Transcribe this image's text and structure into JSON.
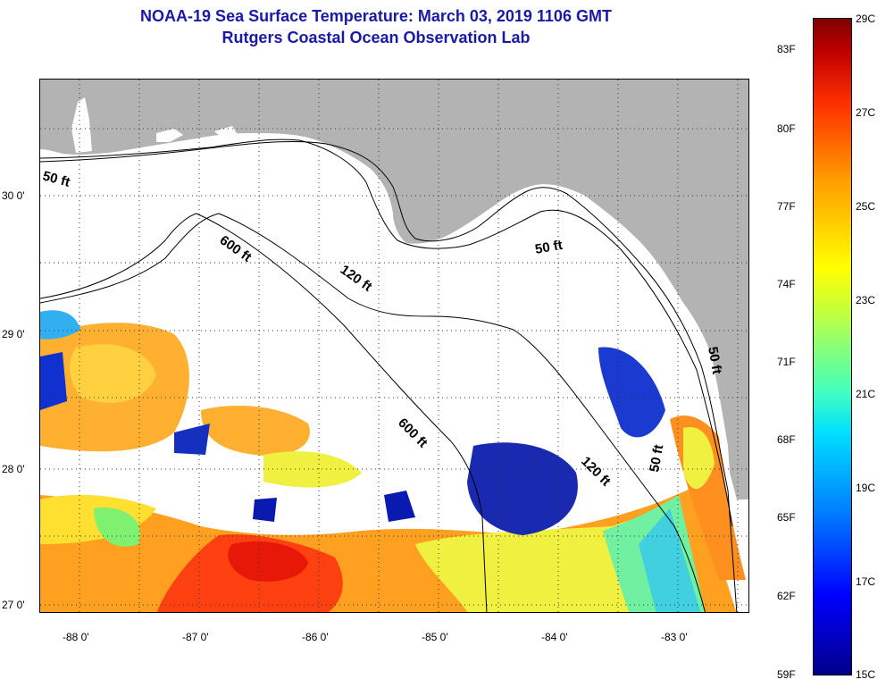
{
  "header": {
    "title": "NOAA-19 Sea Surface Temperature:  March 03, 2019 1106 GMT",
    "subtitle": "Rutgers Coastal Ocean Observation Lab"
  },
  "map": {
    "region": "Northeastern Gulf of Mexico / Florida Big Bend",
    "lat_ticks": [
      "30 0'",
      "29 0'",
      "28 0'",
      "27 0'"
    ],
    "lon_ticks": [
      "-88 0'",
      "-87 0'",
      "-86 0'",
      "-85 0'",
      "-84 0'",
      "-83 0'"
    ],
    "lat_range": [
      26.95,
      30.85
    ],
    "lon_range": [
      -88.32,
      -82.45
    ],
    "depth_contour_labels": [
      "50 ft",
      "600 ft",
      "120 ft",
      "50 ft",
      "600 ft",
      "120 ft",
      "50 ft",
      "50 ft"
    ],
    "colors": {
      "land": "#b3b3b3",
      "no_data": "#ffffff",
      "contour": "#000000"
    }
  },
  "colorbar": {
    "fahrenheit_labels": [
      "83F",
      "80F",
      "77F",
      "74F",
      "71F",
      "68F",
      "65F",
      "62F",
      "59F"
    ],
    "celsius_labels": [
      "29C",
      "27C",
      "25C",
      "23C",
      "21C",
      "19C",
      "17C",
      "15C"
    ],
    "range_c": [
      15,
      29
    ],
    "colormap": "jet"
  }
}
